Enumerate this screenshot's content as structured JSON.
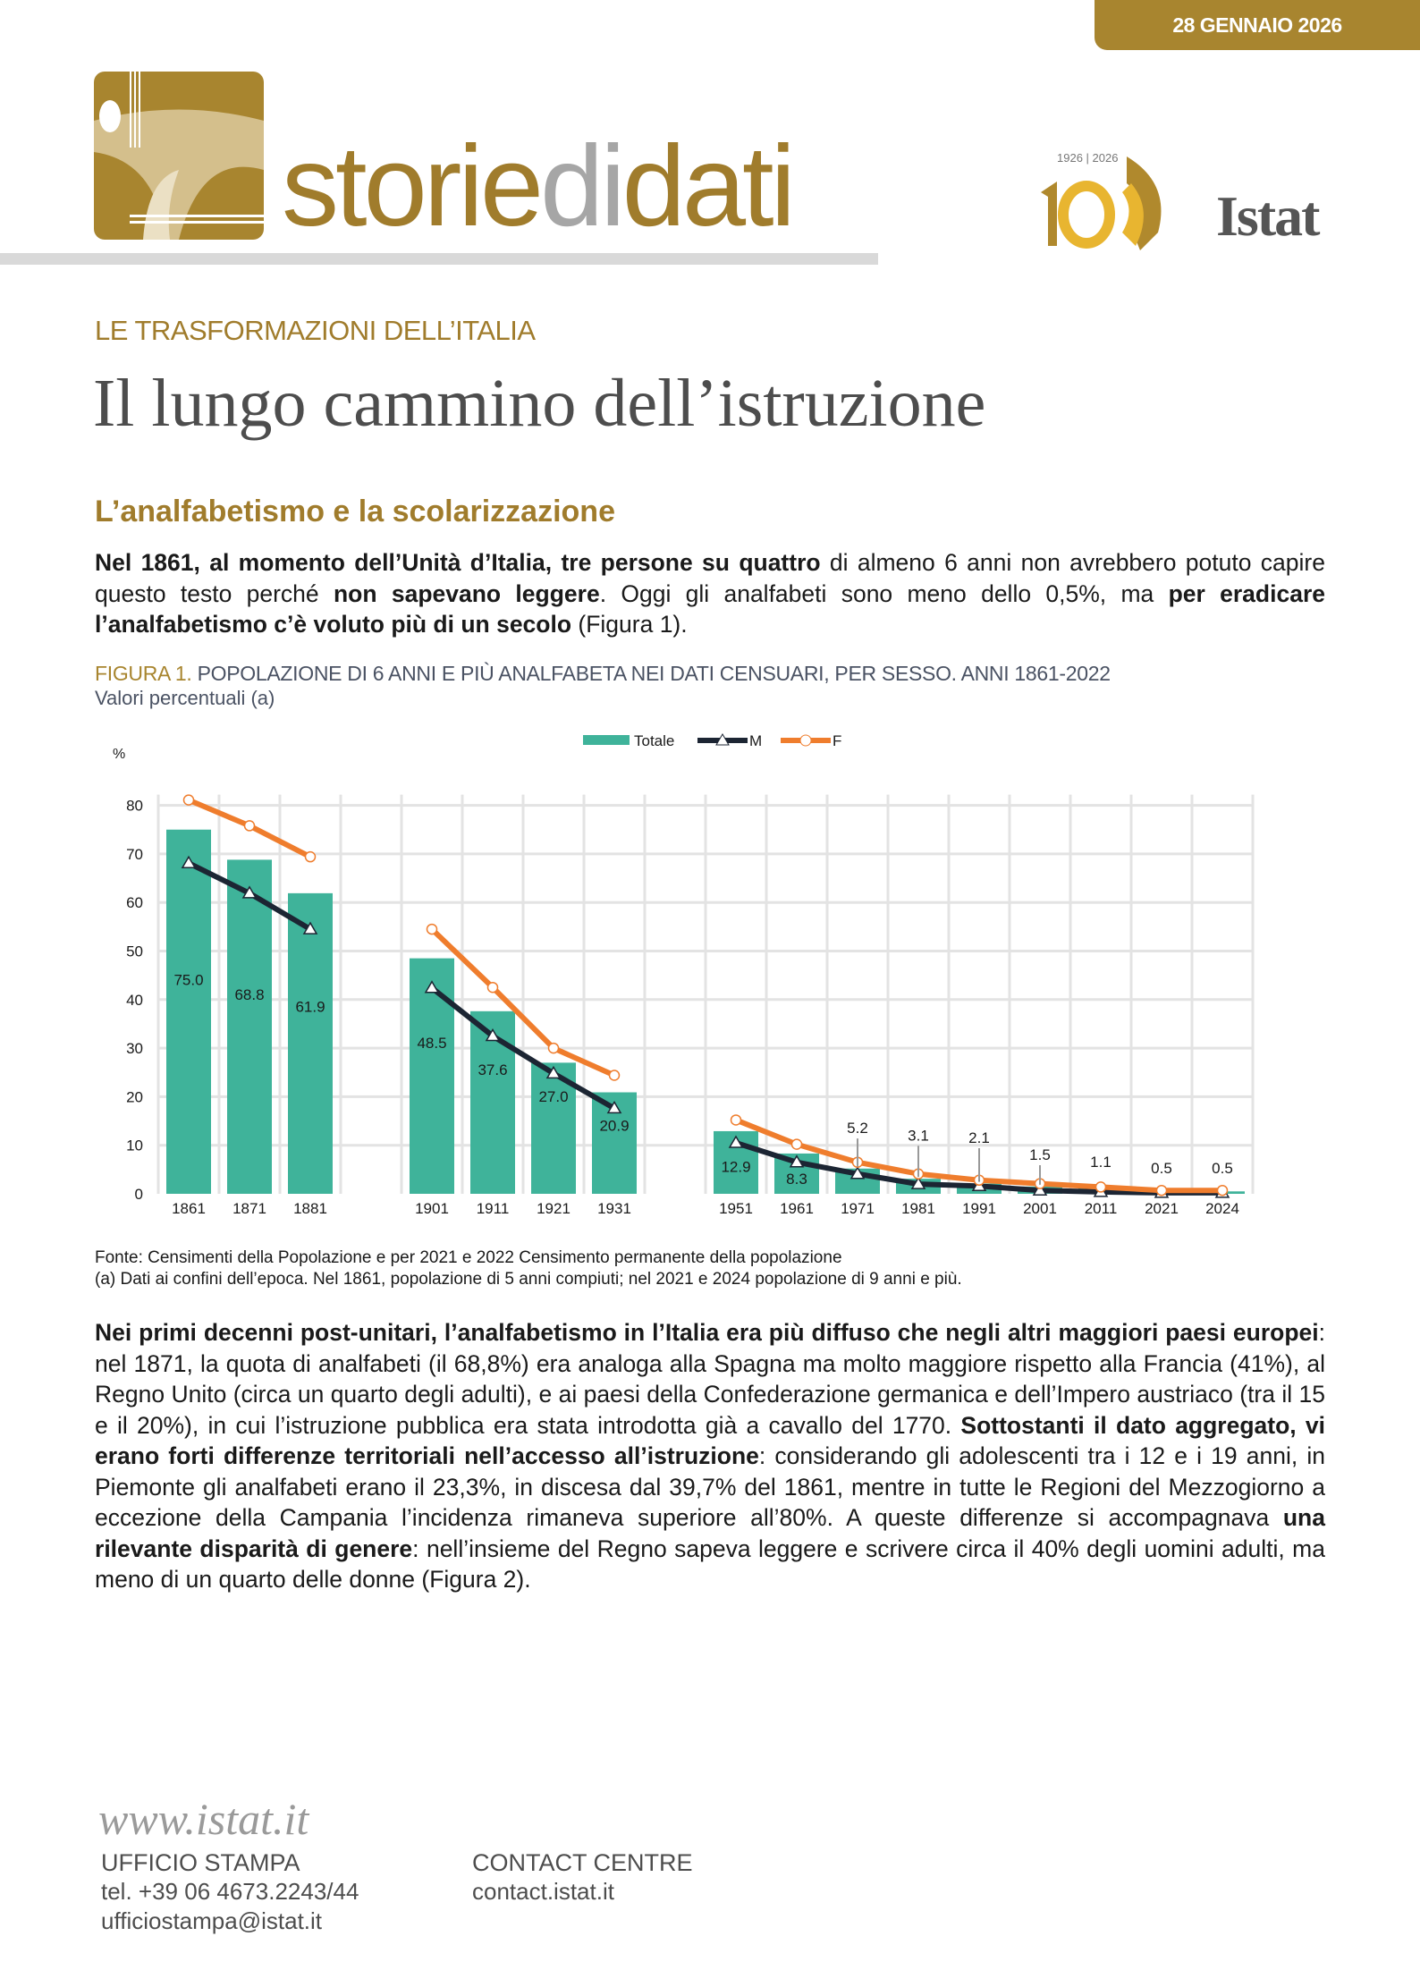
{
  "header": {
    "date": "28 GENNAIO 2026",
    "brand_pre": "storie",
    "brand_mid": "di",
    "brand_post": "dati",
    "istat_years": "1926 | 2026",
    "istat_name": "Istat"
  },
  "article": {
    "kicker": "LE TRASFORMAZIONI DELL’ITALIA",
    "title": "Il lungo cammino dell’istruzione",
    "subheading": "L’analfabetismo e la scolarizzazione",
    "p1": [
      {
        "b": true,
        "t": "Nel 1861, al momento dell’Unità d’Italia, tre persone su quattro"
      },
      {
        "b": false,
        "t": " di almeno 6 anni non avrebbero potuto capire questo testo perché "
      },
      {
        "b": true,
        "t": "non sapevano leggere"
      },
      {
        "b": false,
        "t": ". Oggi gli analfabeti sono meno dello 0,5%, ma "
      },
      {
        "b": true,
        "t": "per eradicare l’analfabetismo c’è voluto più di un secolo"
      },
      {
        "b": false,
        "t": " (Figura 1)."
      }
    ],
    "p2": [
      {
        "b": true,
        "t": "Nei primi decenni post-unitari, l’analfabetismo in l’Italia era più diffuso che negli altri maggiori paesi europei"
      },
      {
        "b": false,
        "t": ": nel 1871, la quota di analfabeti (il 68,8%) era analoga alla Spagna ma molto maggiore rispetto alla Francia (41%), al Regno Unito (circa un quarto degli adulti), e ai paesi della Confederazione germanica e dell’Impero austriaco (tra il 15 e il 20%), in cui l’istruzione pubblica era stata introdotta già a cavallo del 1770. "
      },
      {
        "b": true,
        "t": "Sottostanti il dato aggregato, vi erano forti differenze territoriali nell’accesso all’istruzione"
      },
      {
        "b": false,
        "t": ": considerando gli adolescenti tra i 12 e i 19 anni, in Piemonte gli analfabeti erano il 23,3%, in discesa dal 39,7% del 1861, mentre in tutte le Regioni del Mezzogiorno a eccezione della Campania l’incidenza rimaneva superiore all’80%. A queste differenze si accompagnava "
      },
      {
        "b": true,
        "t": "una rilevante disparità di genere"
      },
      {
        "b": false,
        "t": ": nell’insieme del Regno sapeva leggere e scrivere circa il 40% degli uomini adulti, ma meno di un quarto delle donne (Figura 2)."
      }
    ]
  },
  "figure": {
    "number": "FIGURA 1.",
    "title": " POPOLAZIONE DI 6 ANNI E PIÙ ANALFABETA NEI DATI CENSUARI, PER SESSO. ANNI 1861-2022",
    "subtitle": "Valori percentuali (a)",
    "source": "Fonte: Censimenti della Popolazione e per 2021 e 2022 Censimento permanente della popolazione",
    "note": "(a) Dati ai confini dell’epoca. Nel 1861, popolazione di 5 anni compiuti; nel 2021 e 2024 popolazione di 9 anni e più."
  },
  "chart_data": {
    "type": "bar",
    "ylabel": "%",
    "ylim": [
      0,
      80
    ],
    "yticks": [
      "0",
      "10",
      "20",
      "30",
      "40",
      "50",
      "60",
      "70",
      "80"
    ],
    "grid": true,
    "legend_position": "top",
    "categories": [
      "1861",
      "1871",
      "1881",
      "",
      "1901",
      "1911",
      "1921",
      "1931",
      "",
      "1951",
      "1961",
      "1971",
      "1981",
      "1991",
      "2001",
      "2011",
      "2021",
      "2024"
    ],
    "series": [
      {
        "name": "Totale",
        "kind": "bar",
        "color": "#3fb39a",
        "values": [
          75.0,
          68.8,
          61.9,
          null,
          48.5,
          37.6,
          27.0,
          20.9,
          null,
          12.9,
          8.3,
          5.2,
          3.1,
          2.1,
          1.5,
          1.1,
          0.5,
          0.5
        ],
        "labels": [
          "75.0",
          "68.8",
          "61.9",
          "",
          "48.5",
          "37.6",
          "27.0",
          "20.9",
          "",
          "12.9",
          "8.3",
          "5.2",
          "3.1",
          "2.1",
          "1.5",
          "1.1",
          "0.5",
          "0.5"
        ]
      },
      {
        "name": "M",
        "kind": "line",
        "marker": "triangle",
        "color": "#1c2533",
        "values": [
          68.1,
          61.9,
          54.5,
          null,
          42.4,
          32.5,
          24.8,
          17.6,
          null,
          10.5,
          6.5,
          4.1,
          2.0,
          1.6,
          0.7,
          0.4,
          0.2,
          0.2
        ]
      },
      {
        "name": "F",
        "kind": "line",
        "marker": "circle",
        "color": "#ef7d2d",
        "values": [
          81.1,
          75.8,
          69.4,
          null,
          54.5,
          42.5,
          30.0,
          24.4,
          null,
          15.2,
          10.2,
          6.5,
          4.1,
          2.8,
          2.1,
          1.4,
          0.7,
          0.7
        ]
      }
    ]
  },
  "footer": {
    "website": "www.istat.it",
    "press_title": "UFFICIO STAMPA",
    "press_phone": "tel. +39 06 4673.2243/44",
    "press_email": "ufficiostampa@istat.it",
    "contact_title": "CONTACT CENTRE",
    "contact_site": "contact.istat.it"
  }
}
